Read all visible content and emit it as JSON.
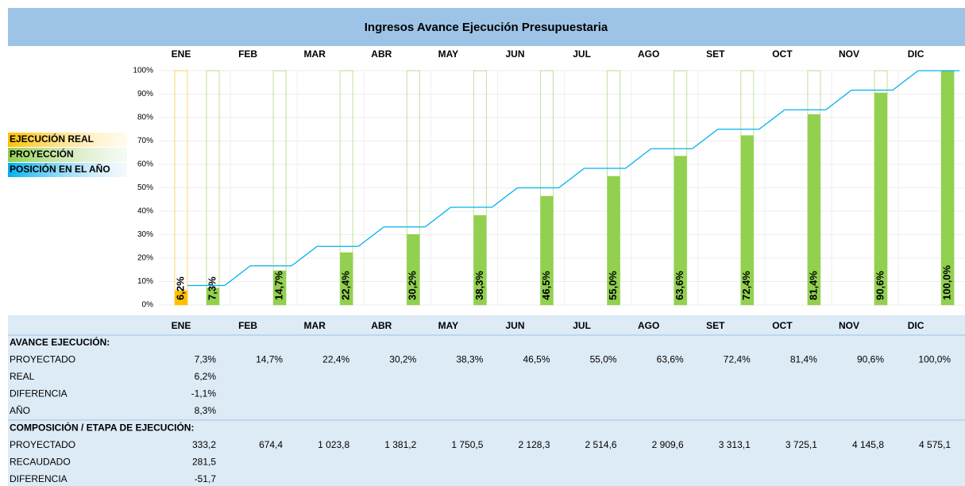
{
  "title": "Ingresos Avance Ejecución Presupuestaria",
  "chart_data": {
    "type": "bar",
    "categories": [
      "ENE",
      "FEB",
      "MAR",
      "ABR",
      "MAY",
      "JUN",
      "JUL",
      "AGO",
      "SET",
      "OCT",
      "NOV",
      "DIC"
    ],
    "series": [
      {
        "name": "EJECUCIÓN REAL",
        "color": "#FFC000",
        "values": [
          6.2,
          null,
          null,
          null,
          null,
          null,
          null,
          null,
          null,
          null,
          null,
          null
        ],
        "value_labels": [
          "6,2%",
          null,
          null,
          null,
          null,
          null,
          null,
          null,
          null,
          null,
          null,
          null
        ]
      },
      {
        "name": "PROYECCIÓN",
        "color": "#92D050",
        "values": [
          7.3,
          14.7,
          22.4,
          30.2,
          38.3,
          46.5,
          55.0,
          63.6,
          72.4,
          81.4,
          90.6,
          100.0
        ],
        "value_labels": [
          "7,3%",
          "14,7%",
          "22,4%",
          "30,2%",
          "38,3%",
          "46,5%",
          "55,0%",
          "63,6%",
          "72,4%",
          "81,4%",
          "90,6%",
          "100,0%"
        ]
      },
      {
        "name": "POSICIÓN EN EL AÑO",
        "color": "#00B0F0",
        "type": "line",
        "values": [
          8.3,
          16.7,
          25,
          33.3,
          41.7,
          50,
          58.3,
          66.7,
          75,
          83.3,
          91.7,
          100
        ]
      }
    ],
    "ylim": [
      0,
      100
    ],
    "yticks": [
      {
        "value": 0,
        "label": "0%"
      },
      {
        "value": 10,
        "label": "10%"
      },
      {
        "value": 20,
        "label": "20%"
      },
      {
        "value": 30,
        "label": "30%"
      },
      {
        "value": 40,
        "label": "40%"
      },
      {
        "value": 50,
        "label": "50%"
      },
      {
        "value": 60,
        "label": "60%"
      },
      {
        "value": 70,
        "label": "70%"
      },
      {
        "value": 80,
        "label": "80%"
      },
      {
        "value": 90,
        "label": "90%"
      },
      {
        "value": 100,
        "label": "100%"
      }
    ],
    "grid": true
  },
  "table": {
    "sections": [
      {
        "title": "AVANCE EJECUCIÓN:",
        "rows": [
          {
            "label": "PROYECTADO",
            "cells": [
              "7,3%",
              "14,7%",
              "22,4%",
              "30,2%",
              "38,3%",
              "46,5%",
              "55,0%",
              "63,6%",
              "72,4%",
              "81,4%",
              "90,6%",
              "100,0%"
            ]
          },
          {
            "label": "REAL",
            "cells": [
              "6,2%"
            ]
          },
          {
            "label": "DIFERENCIA",
            "cells": [
              "-1,1%"
            ]
          },
          {
            "label": "AÑO",
            "cells": [
              "8,3%"
            ]
          }
        ]
      },
      {
        "title": "COMPOSICIÓN / ETAPA DE EJECUCIÓN:",
        "rows": [
          {
            "label": "PROYECTADO",
            "cells": [
              "333,2",
              "674,4",
              "1 023,8",
              "1 381,2",
              "1 750,5",
              "2 128,3",
              "2 514,6",
              "2 909,6",
              "3 313,1",
              "3 725,1",
              "4 145,8",
              "4 575,1"
            ]
          },
          {
            "label": "RECAUDADO",
            "cells": [
              "281,5"
            ]
          },
          {
            "label": "DIFERENCIA",
            "cells": [
              "-51,7"
            ]
          }
        ]
      }
    ]
  }
}
